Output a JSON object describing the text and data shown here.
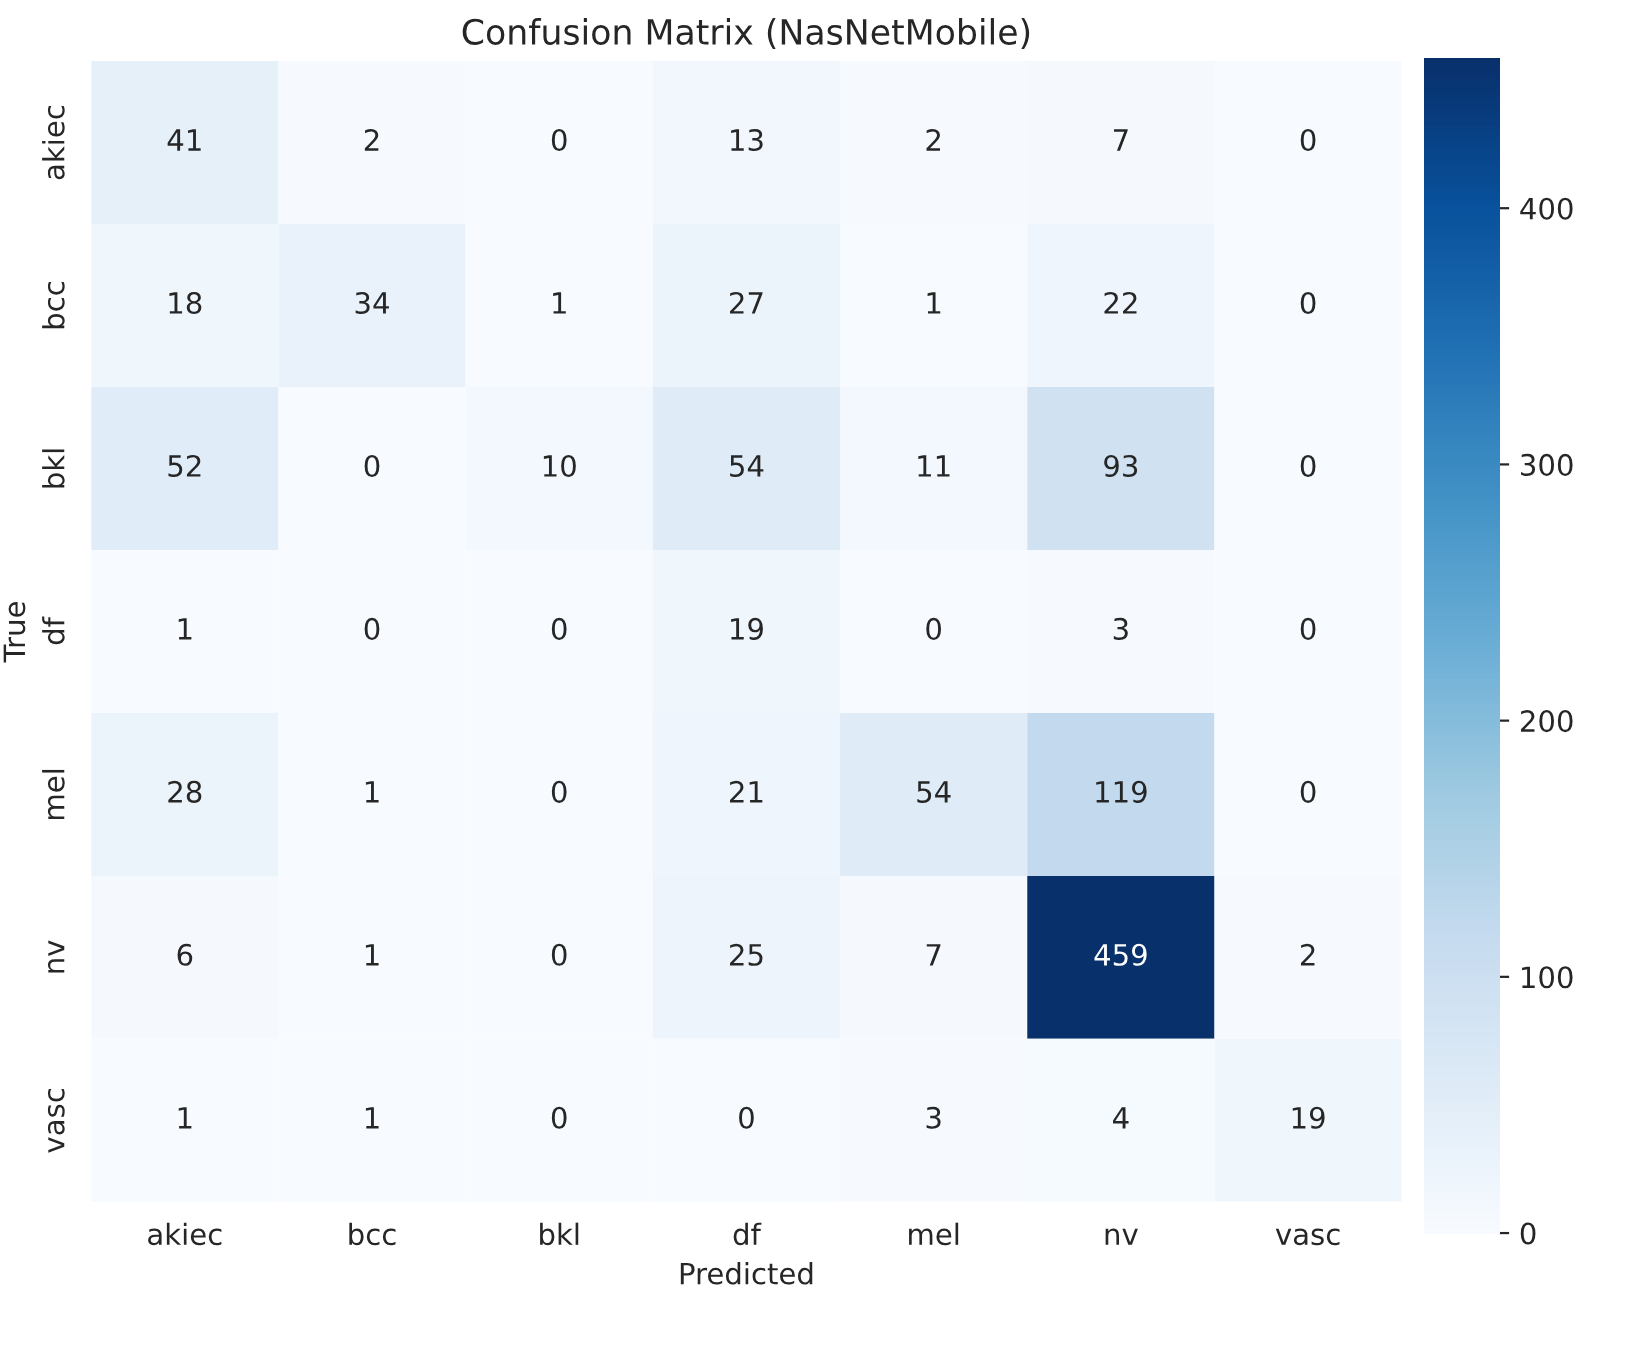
{
  "chart_data": {
    "type": "heatmap",
    "title": "Confusion Matrix (NasNetMobile)",
    "xlabel": "Predicted",
    "ylabel": "True",
    "categories": [
      "akiec",
      "bcc",
      "bkl",
      "df",
      "mel",
      "nv",
      "vasc"
    ],
    "y_categories": [
      "akiec",
      "bcc",
      "bkl",
      "df",
      "mel",
      "nv",
      "vasc"
    ],
    "cells": [
      [
        41,
        2,
        0,
        13,
        2,
        7,
        0
      ],
      [
        18,
        34,
        1,
        27,
        1,
        22,
        0
      ],
      [
        52,
        0,
        10,
        54,
        11,
        93,
        0
      ],
      [
        1,
        0,
        0,
        19,
        0,
        3,
        0
      ],
      [
        28,
        1,
        0,
        21,
        54,
        119,
        0
      ],
      [
        6,
        1,
        0,
        25,
        7,
        459,
        2
      ],
      [
        1,
        1,
        0,
        0,
        3,
        4,
        19
      ]
    ],
    "clim": [
      0,
      459
    ],
    "cticks": [
      0,
      100,
      200,
      300,
      400
    ],
    "data_labels": true
  }
}
